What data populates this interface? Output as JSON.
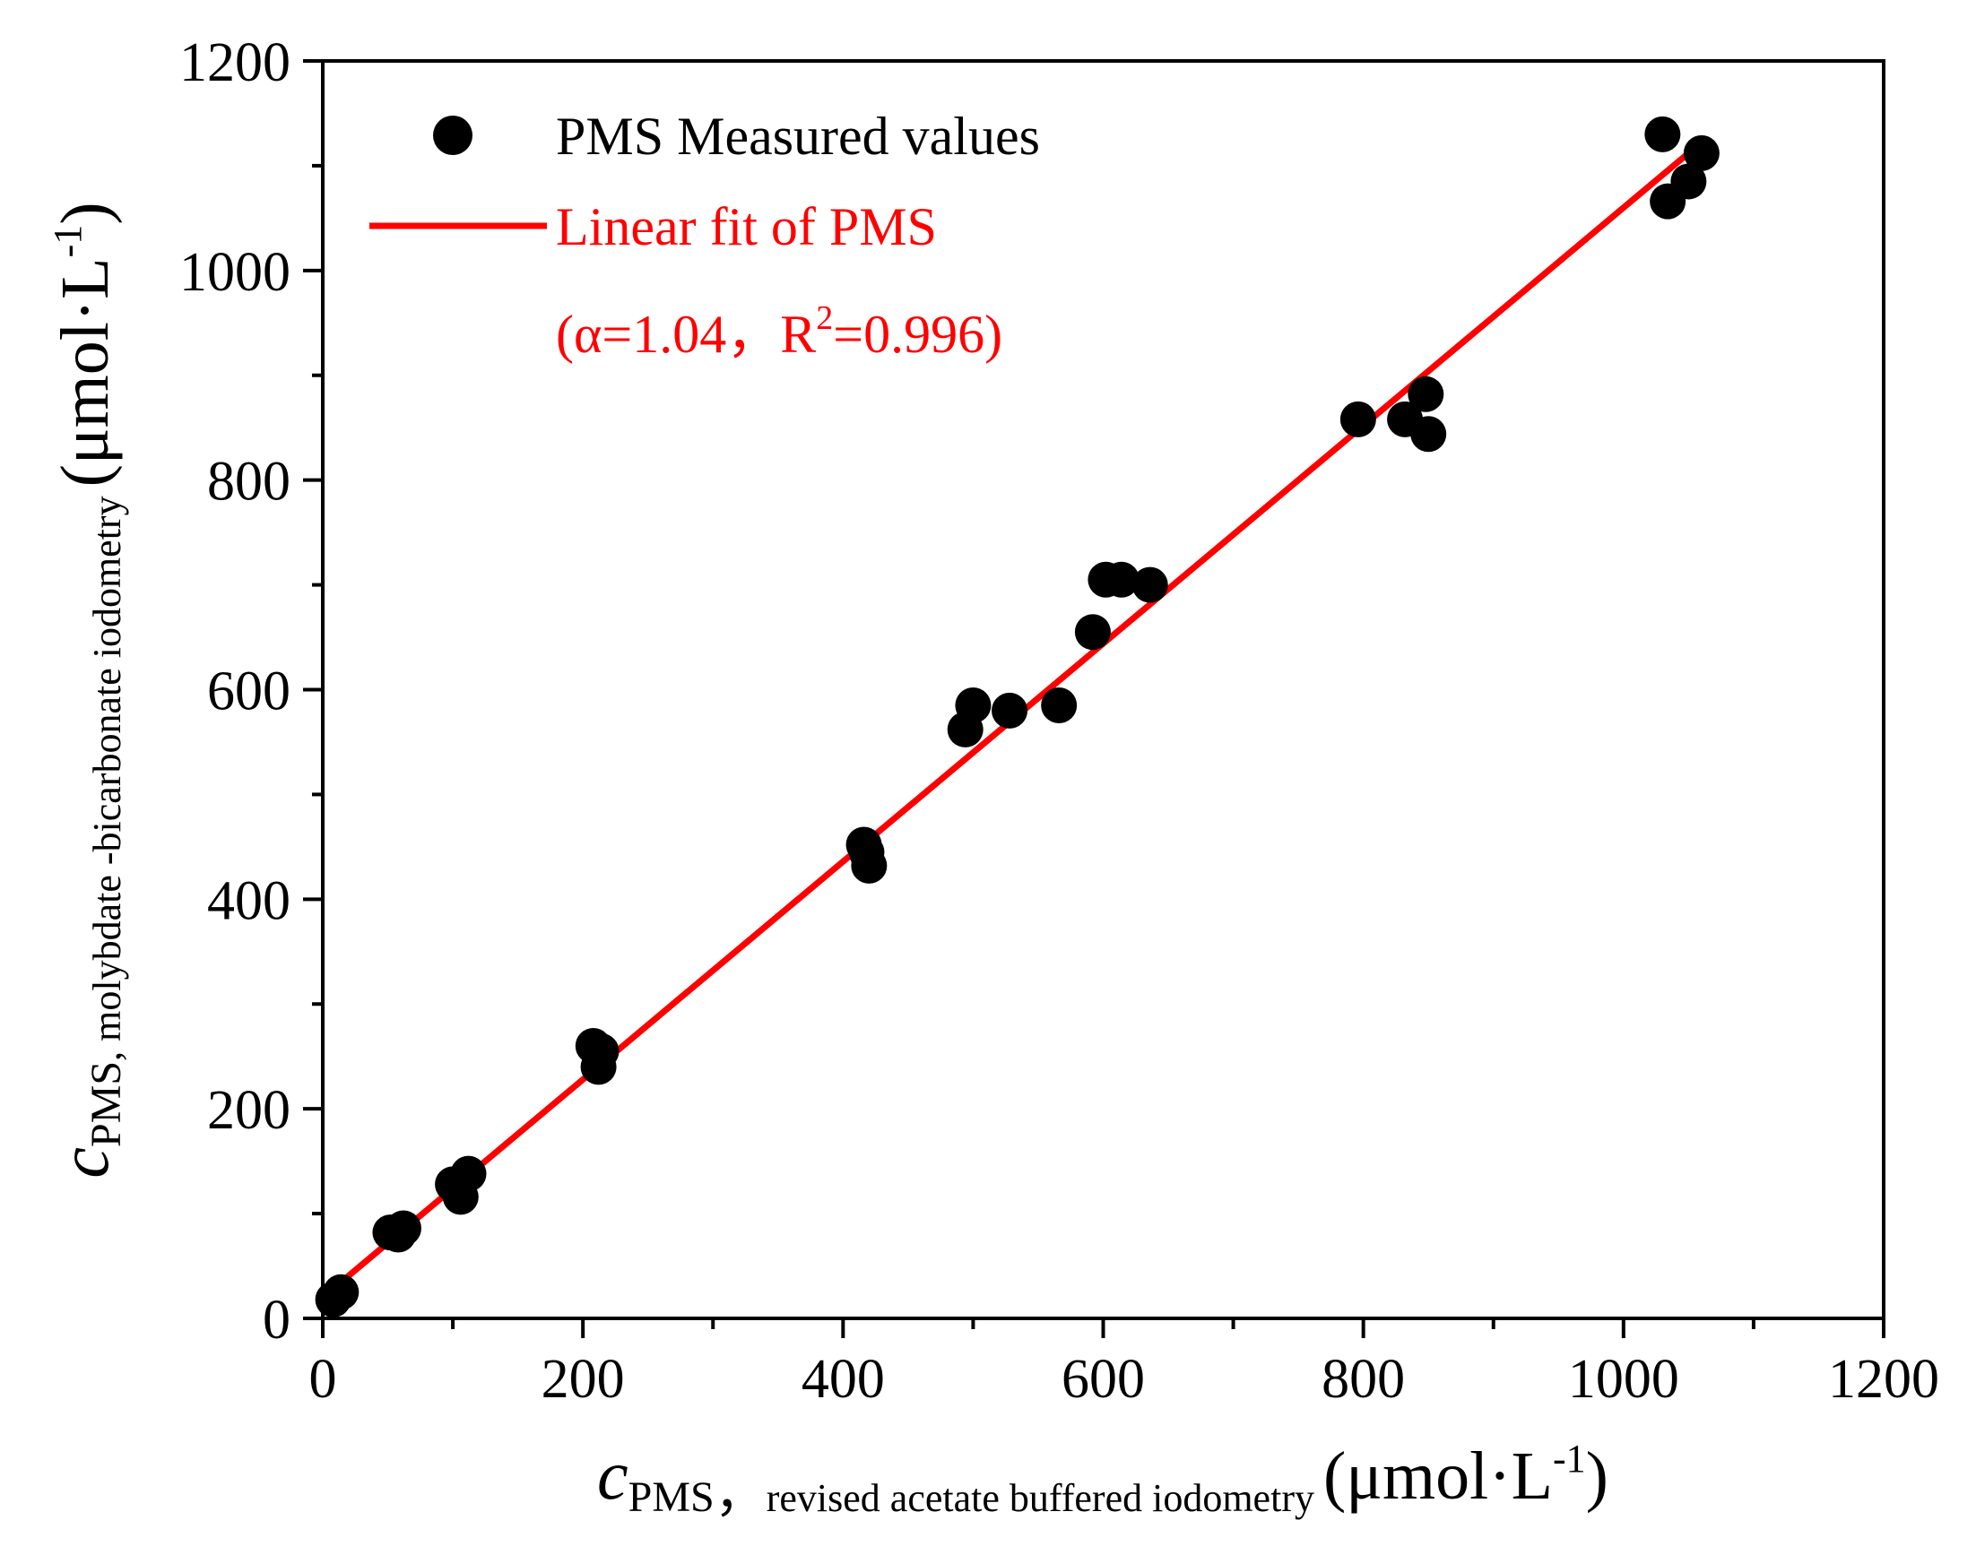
{
  "chart_data": {
    "type": "scatter",
    "xlim": [
      0,
      1200
    ],
    "ylim": [
      0,
      1200
    ],
    "x_major_ticks": [
      0,
      200,
      400,
      600,
      800,
      1000,
      1200
    ],
    "y_major_ticks": [
      0,
      200,
      400,
      600,
      800,
      1000,
      1200
    ],
    "x_minor_ticks": [
      100,
      300,
      500,
      700,
      900,
      1100
    ],
    "y_minor_ticks": [
      100,
      300,
      500,
      700,
      900,
      1100
    ],
    "x_tick_labels": [
      "0",
      "200",
      "400",
      "600",
      "800",
      "1000",
      "1200"
    ],
    "y_tick_labels": [
      "0",
      "200",
      "400",
      "600",
      "800",
      "1000",
      "1200"
    ],
    "xlabel": {
      "var": "c",
      "sub": "PMS",
      "sep": "，",
      "desc": "revised acetate buffered iodometry",
      "unit_open": "(μmol·L",
      "unit_exp": "-1",
      "unit_close": ")"
    },
    "ylabel": {
      "var": "c",
      "sub": "PMS",
      "desc": ", molybdate -bicarbonate iodometry",
      "unit_open": "(μmol·L",
      "unit_exp": "-1",
      "unit_close": ")"
    },
    "series": [
      {
        "name": "PMS Measured values",
        "kind": "scatter",
        "color": "#000000",
        "points": [
          [
            8,
            18
          ],
          [
            14,
            25
          ],
          [
            52,
            82
          ],
          [
            58,
            80
          ],
          [
            62,
            86
          ],
          [
            100,
            128
          ],
          [
            106,
            116
          ],
          [
            112,
            138
          ],
          [
            208,
            260
          ],
          [
            214,
            255
          ],
          [
            212,
            240
          ],
          [
            416,
            452
          ],
          [
            418,
            445
          ],
          [
            420,
            432
          ],
          [
            494,
            562
          ],
          [
            500,
            585
          ],
          [
            528,
            580
          ],
          [
            566,
            585
          ],
          [
            592,
            655
          ],
          [
            602,
            705
          ],
          [
            614,
            705
          ],
          [
            636,
            700
          ],
          [
            796,
            858
          ],
          [
            832,
            858
          ],
          [
            848,
            882
          ],
          [
            850,
            844
          ],
          [
            1030,
            1130
          ],
          [
            1034,
            1066
          ],
          [
            1050,
            1085
          ],
          [
            1060,
            1112
          ]
        ]
      },
      {
        "name": "Linear fit of PMS",
        "kind": "line",
        "color": "#ff0000",
        "slope": 1.04,
        "intercept": 20,
        "x_range": [
          0,
          1060
        ]
      }
    ],
    "legend": {
      "position": "top-left",
      "entries": [
        "PMS Measured values",
        "Linear fit of PMS"
      ],
      "annotation_open": "(α=1.04，R",
      "annotation_exp": "2",
      "annotation_close": "=0.996)",
      "annotation_color": "#ff0000"
    }
  }
}
